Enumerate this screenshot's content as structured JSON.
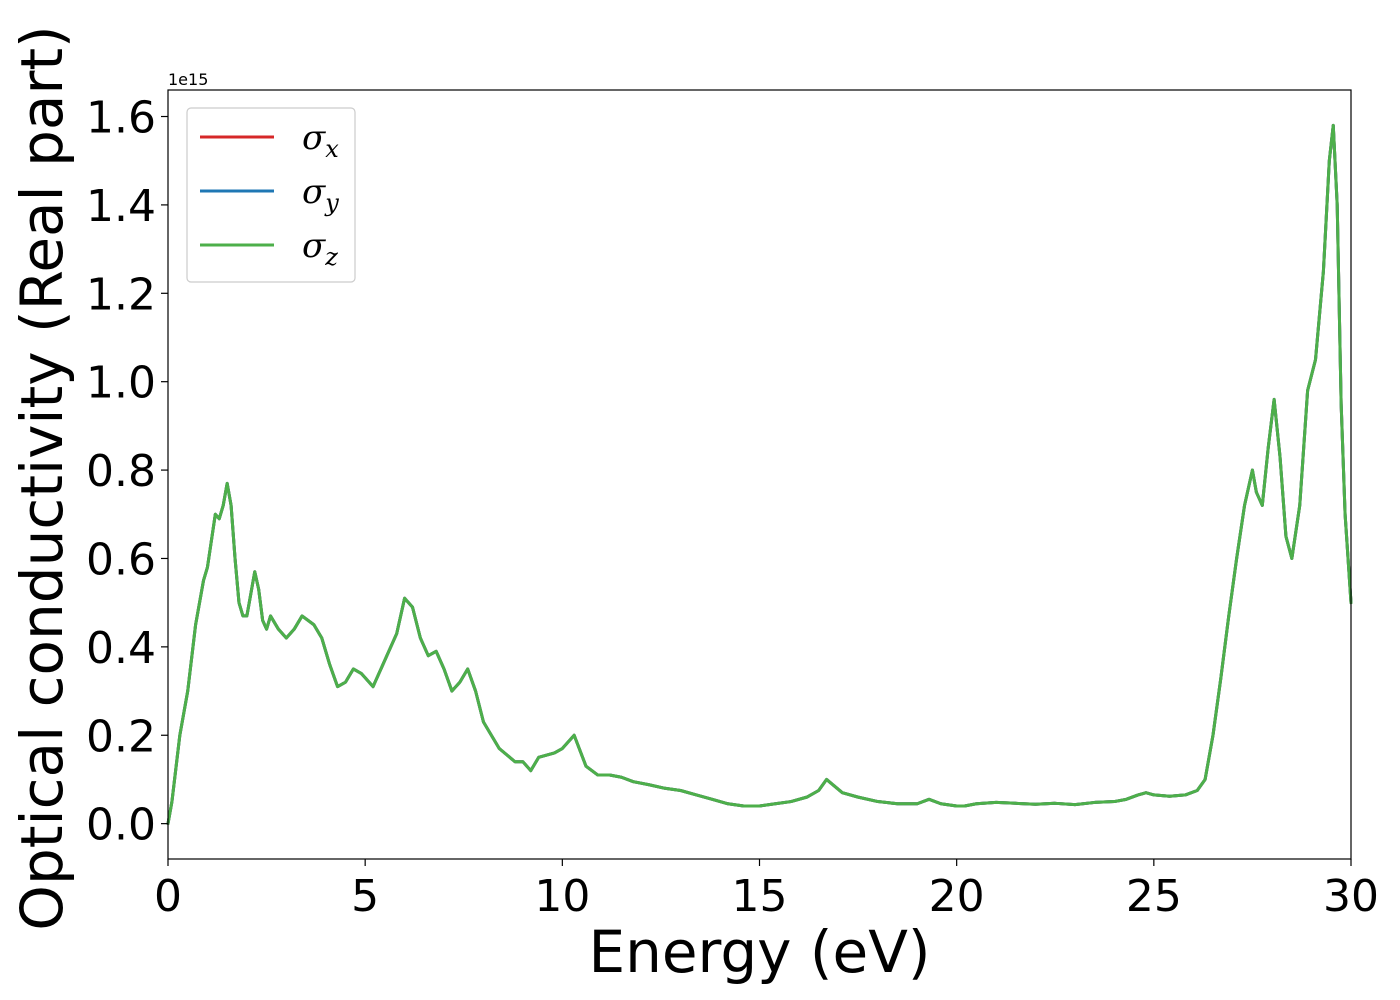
{
  "chart_data": {
    "type": "line",
    "xlabel": "Energy (eV)",
    "ylabel": "Optical conductivity (Real part)",
    "y_offset_label": "1e15",
    "xlim": [
      0,
      30
    ],
    "ylim": [
      -0.08,
      1.66
    ],
    "xticks": [
      0,
      5,
      10,
      15,
      20,
      25,
      30
    ],
    "xtick_labels": [
      "0",
      "5",
      "10",
      "15",
      "20",
      "25",
      "30"
    ],
    "yticks": [
      0.0,
      0.2,
      0.4,
      0.6,
      0.8,
      1.0,
      1.2,
      1.4,
      1.6
    ],
    "ytick_labels": [
      "0.0",
      "0.2",
      "0.4",
      "0.6",
      "0.8",
      "1.0",
      "1.2",
      "1.4",
      "1.6"
    ],
    "grid": false,
    "legend_position": "top-left",
    "x": [
      0,
      0.1,
      0.3,
      0.5,
      0.7,
      0.9,
      1.0,
      1.2,
      1.3,
      1.4,
      1.5,
      1.6,
      1.7,
      1.8,
      1.9,
      2.0,
      2.1,
      2.2,
      2.3,
      2.4,
      2.5,
      2.6,
      2.8,
      3.0,
      3.2,
      3.4,
      3.7,
      3.9,
      4.1,
      4.3,
      4.5,
      4.7,
      4.9,
      5.0,
      5.2,
      5.4,
      5.6,
      5.8,
      6.0,
      6.2,
      6.4,
      6.6,
      6.8,
      7.0,
      7.2,
      7.4,
      7.6,
      7.8,
      8.0,
      8.4,
      8.8,
      9.0,
      9.2,
      9.4,
      9.8,
      10.0,
      10.3,
      10.6,
      10.9,
      11.2,
      11.5,
      11.8,
      12.2,
      12.6,
      13.0,
      13.4,
      13.8,
      14.2,
      14.6,
      15.0,
      15.4,
      15.8,
      16.2,
      16.5,
      16.7,
      16.9,
      17.1,
      17.5,
      18.0,
      18.5,
      19.0,
      19.3,
      19.6,
      20.0,
      20.2,
      20.5,
      21.0,
      21.5,
      22.0,
      22.5,
      23.0,
      23.5,
      24.0,
      24.3,
      24.6,
      24.8,
      25.0,
      25.4,
      25.8,
      26.1,
      26.3,
      26.5,
      26.7,
      26.9,
      27.1,
      27.3,
      27.5,
      27.6,
      27.75,
      27.9,
      28.05,
      28.2,
      28.35,
      28.5,
      28.7,
      28.9,
      29.1,
      29.3,
      29.45,
      29.55,
      29.65,
      29.75,
      29.85,
      30.0
    ],
    "series": [
      {
        "name": "σx",
        "color": "#d62728",
        "values": [
          0.0,
          0.05,
          0.2,
          0.3,
          0.45,
          0.55,
          0.58,
          0.7,
          0.69,
          0.72,
          0.77,
          0.72,
          0.6,
          0.5,
          0.47,
          0.47,
          0.52,
          0.57,
          0.53,
          0.46,
          0.44,
          0.47,
          0.44,
          0.42,
          0.44,
          0.47,
          0.45,
          0.42,
          0.36,
          0.31,
          0.32,
          0.35,
          0.34,
          0.33,
          0.31,
          0.35,
          0.39,
          0.43,
          0.51,
          0.49,
          0.42,
          0.38,
          0.39,
          0.35,
          0.3,
          0.32,
          0.35,
          0.3,
          0.23,
          0.17,
          0.14,
          0.14,
          0.12,
          0.15,
          0.16,
          0.17,
          0.2,
          0.13,
          0.11,
          0.11,
          0.105,
          0.095,
          0.088,
          0.08,
          0.075,
          0.065,
          0.055,
          0.045,
          0.04,
          0.04,
          0.045,
          0.05,
          0.06,
          0.075,
          0.1,
          0.085,
          0.07,
          0.06,
          0.05,
          0.045,
          0.045,
          0.055,
          0.045,
          0.04,
          0.04,
          0.045,
          0.048,
          0.046,
          0.044,
          0.046,
          0.043,
          0.048,
          0.05,
          0.055,
          0.065,
          0.07,
          0.065,
          0.062,
          0.065,
          0.075,
          0.1,
          0.2,
          0.33,
          0.47,
          0.6,
          0.72,
          0.8,
          0.75,
          0.72,
          0.85,
          0.96,
          0.83,
          0.65,
          0.6,
          0.72,
          0.98,
          1.05,
          1.25,
          1.5,
          1.58,
          1.4,
          0.95,
          0.7,
          0.5
        ]
      },
      {
        "name": "σy",
        "color": "#1f77b4",
        "values": [
          0.0,
          0.05,
          0.2,
          0.3,
          0.45,
          0.55,
          0.58,
          0.7,
          0.69,
          0.72,
          0.77,
          0.72,
          0.6,
          0.5,
          0.47,
          0.47,
          0.52,
          0.57,
          0.53,
          0.46,
          0.44,
          0.47,
          0.44,
          0.42,
          0.44,
          0.47,
          0.45,
          0.42,
          0.36,
          0.31,
          0.32,
          0.35,
          0.34,
          0.33,
          0.31,
          0.35,
          0.39,
          0.43,
          0.51,
          0.49,
          0.42,
          0.38,
          0.39,
          0.35,
          0.3,
          0.32,
          0.35,
          0.3,
          0.23,
          0.17,
          0.14,
          0.14,
          0.12,
          0.15,
          0.16,
          0.17,
          0.2,
          0.13,
          0.11,
          0.11,
          0.105,
          0.095,
          0.088,
          0.08,
          0.075,
          0.065,
          0.055,
          0.045,
          0.04,
          0.04,
          0.045,
          0.05,
          0.06,
          0.075,
          0.1,
          0.085,
          0.07,
          0.06,
          0.05,
          0.045,
          0.045,
          0.055,
          0.045,
          0.04,
          0.04,
          0.045,
          0.048,
          0.046,
          0.044,
          0.046,
          0.043,
          0.048,
          0.05,
          0.055,
          0.065,
          0.07,
          0.065,
          0.062,
          0.065,
          0.075,
          0.1,
          0.2,
          0.33,
          0.47,
          0.6,
          0.72,
          0.8,
          0.75,
          0.72,
          0.85,
          0.96,
          0.83,
          0.65,
          0.6,
          0.72,
          0.98,
          1.05,
          1.25,
          1.5,
          1.58,
          1.4,
          0.95,
          0.7,
          0.5
        ]
      },
      {
        "name": "σz",
        "color": "#4daf4a",
        "values": [
          0.0,
          0.05,
          0.2,
          0.3,
          0.45,
          0.55,
          0.58,
          0.7,
          0.69,
          0.72,
          0.77,
          0.72,
          0.6,
          0.5,
          0.47,
          0.47,
          0.52,
          0.57,
          0.53,
          0.46,
          0.44,
          0.47,
          0.44,
          0.42,
          0.44,
          0.47,
          0.45,
          0.42,
          0.36,
          0.31,
          0.32,
          0.35,
          0.34,
          0.33,
          0.31,
          0.35,
          0.39,
          0.43,
          0.51,
          0.49,
          0.42,
          0.38,
          0.39,
          0.35,
          0.3,
          0.32,
          0.35,
          0.3,
          0.23,
          0.17,
          0.14,
          0.14,
          0.12,
          0.15,
          0.16,
          0.17,
          0.2,
          0.13,
          0.11,
          0.11,
          0.105,
          0.095,
          0.088,
          0.08,
          0.075,
          0.065,
          0.055,
          0.045,
          0.04,
          0.04,
          0.045,
          0.05,
          0.06,
          0.075,
          0.1,
          0.085,
          0.07,
          0.06,
          0.05,
          0.045,
          0.045,
          0.055,
          0.045,
          0.04,
          0.04,
          0.045,
          0.048,
          0.046,
          0.044,
          0.046,
          0.043,
          0.048,
          0.05,
          0.055,
          0.065,
          0.07,
          0.065,
          0.062,
          0.065,
          0.075,
          0.1,
          0.2,
          0.33,
          0.47,
          0.6,
          0.72,
          0.8,
          0.75,
          0.72,
          0.85,
          0.96,
          0.83,
          0.65,
          0.6,
          0.72,
          0.98,
          1.05,
          1.25,
          1.5,
          1.58,
          1.4,
          0.95,
          0.7,
          0.5
        ]
      }
    ],
    "legend": [
      {
        "symbol": "σ",
        "sub": "x",
        "color": "#d62728"
      },
      {
        "symbol": "σ",
        "sub": "y",
        "color": "#1f77b4"
      },
      {
        "symbol": "σ",
        "sub": "z",
        "color": "#4daf4a"
      }
    ]
  }
}
